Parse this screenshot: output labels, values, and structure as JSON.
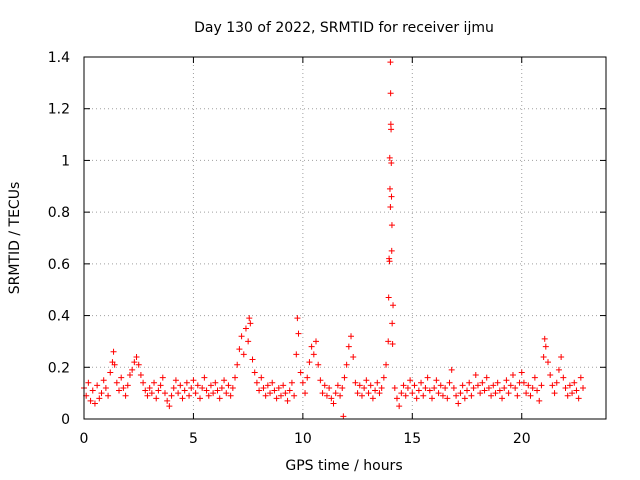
{
  "chart_data": {
    "type": "scatter",
    "title": "Day 130 of 2022, SRMTID for receiver ijmu",
    "xlabel": "GPS time / hours",
    "ylabel": "SRMTID / TECUs",
    "xlim": [
      0,
      23.85
    ],
    "ylim": [
      0,
      1.4
    ],
    "xticks": [
      0,
      5,
      10,
      15,
      20
    ],
    "xtick_labels": [
      "0",
      "5",
      "10",
      "15",
      "20"
    ],
    "yticks": [
      0,
      0.2,
      0.4,
      0.6,
      0.8,
      1,
      1.2,
      1.4
    ],
    "ytick_labels": [
      "0",
      "0.2",
      "0.4",
      "0.6",
      "0.8",
      "1",
      "1.2",
      "1.4"
    ],
    "grid": true,
    "marker": "+",
    "color": "#ff0000",
    "series": [
      {
        "name": "SRMTID",
        "points": [
          [
            0.0,
            0.12
          ],
          [
            0.1,
            0.09
          ],
          [
            0.2,
            0.14
          ],
          [
            0.3,
            0.07
          ],
          [
            0.4,
            0.11
          ],
          [
            0.5,
            0.06
          ],
          [
            0.6,
            0.13
          ],
          [
            0.7,
            0.08
          ],
          [
            0.8,
            0.1
          ],
          [
            0.9,
            0.15
          ],
          [
            1.0,
            0.12
          ],
          [
            1.1,
            0.09
          ],
          [
            1.2,
            0.18
          ],
          [
            1.3,
            0.22
          ],
          [
            1.35,
            0.26
          ],
          [
            1.4,
            0.21
          ],
          [
            1.5,
            0.14
          ],
          [
            1.6,
            0.11
          ],
          [
            1.7,
            0.16
          ],
          [
            1.8,
            0.12
          ],
          [
            1.9,
            0.09
          ],
          [
            2.0,
            0.13
          ],
          [
            2.1,
            0.17
          ],
          [
            2.2,
            0.19
          ],
          [
            2.3,
            0.22
          ],
          [
            2.4,
            0.24
          ],
          [
            2.5,
            0.21
          ],
          [
            2.6,
            0.17
          ],
          [
            2.7,
            0.14
          ],
          [
            2.8,
            0.11
          ],
          [
            2.9,
            0.09
          ],
          [
            3.0,
            0.12
          ],
          [
            3.1,
            0.1
          ],
          [
            3.2,
            0.14
          ],
          [
            3.3,
            0.08
          ],
          [
            3.4,
            0.11
          ],
          [
            3.5,
            0.13
          ],
          [
            3.6,
            0.16
          ],
          [
            3.7,
            0.1
          ],
          [
            3.8,
            0.07
          ],
          [
            3.9,
            0.05
          ],
          [
            4.0,
            0.09
          ],
          [
            4.1,
            0.12
          ],
          [
            4.2,
            0.15
          ],
          [
            4.3,
            0.1
          ],
          [
            4.4,
            0.13
          ],
          [
            4.5,
            0.08
          ],
          [
            4.6,
            0.11
          ],
          [
            4.7,
            0.14
          ],
          [
            4.8,
            0.09
          ],
          [
            4.9,
            0.12
          ],
          [
            5.0,
            0.15
          ],
          [
            5.1,
            0.1
          ],
          [
            5.2,
            0.13
          ],
          [
            5.3,
            0.08
          ],
          [
            5.4,
            0.12
          ],
          [
            5.5,
            0.16
          ],
          [
            5.6,
            0.11
          ],
          [
            5.7,
            0.09
          ],
          [
            5.8,
            0.13
          ],
          [
            5.9,
            0.1
          ],
          [
            6.0,
            0.14
          ],
          [
            6.1,
            0.11
          ],
          [
            6.2,
            0.08
          ],
          [
            6.3,
            0.12
          ],
          [
            6.4,
            0.15
          ],
          [
            6.5,
            0.1
          ],
          [
            6.6,
            0.13
          ],
          [
            6.7,
            0.09
          ],
          [
            6.8,
            0.12
          ],
          [
            6.9,
            0.16
          ],
          [
            7.0,
            0.21
          ],
          [
            7.1,
            0.27
          ],
          [
            7.2,
            0.32
          ],
          [
            7.3,
            0.25
          ],
          [
            7.4,
            0.35
          ],
          [
            7.5,
            0.3
          ],
          [
            7.55,
            0.39
          ],
          [
            7.6,
            0.37
          ],
          [
            7.7,
            0.23
          ],
          [
            7.8,
            0.18
          ],
          [
            7.9,
            0.14
          ],
          [
            8.0,
            0.11
          ],
          [
            8.1,
            0.16
          ],
          [
            8.2,
            0.12
          ],
          [
            8.3,
            0.09
          ],
          [
            8.4,
            0.13
          ],
          [
            8.5,
            0.1
          ],
          [
            8.6,
            0.14
          ],
          [
            8.7,
            0.11
          ],
          [
            8.8,
            0.08
          ],
          [
            8.9,
            0.12
          ],
          [
            9.0,
            0.09
          ],
          [
            9.1,
            0.13
          ],
          [
            9.2,
            0.1
          ],
          [
            9.3,
            0.07
          ],
          [
            9.4,
            0.11
          ],
          [
            9.5,
            0.14
          ],
          [
            9.6,
            0.09
          ],
          [
            9.7,
            0.25
          ],
          [
            9.75,
            0.39
          ],
          [
            9.8,
            0.33
          ],
          [
            9.9,
            0.18
          ],
          [
            10.0,
            0.14
          ],
          [
            10.1,
            0.1
          ],
          [
            10.2,
            0.16
          ],
          [
            10.3,
            0.22
          ],
          [
            10.4,
            0.28
          ],
          [
            10.5,
            0.25
          ],
          [
            10.6,
            0.3
          ],
          [
            10.7,
            0.21
          ],
          [
            10.8,
            0.15
          ],
          [
            10.9,
            0.1
          ],
          [
            11.0,
            0.13
          ],
          [
            11.1,
            0.09
          ],
          [
            11.2,
            0.12
          ],
          [
            11.3,
            0.08
          ],
          [
            11.4,
            0.06
          ],
          [
            11.5,
            0.1
          ],
          [
            11.6,
            0.13
          ],
          [
            11.7,
            0.09
          ],
          [
            11.8,
            0.12
          ],
          [
            11.85,
            0.01
          ],
          [
            11.9,
            0.16
          ],
          [
            12.0,
            0.21
          ],
          [
            12.1,
            0.28
          ],
          [
            12.2,
            0.32
          ],
          [
            12.3,
            0.24
          ],
          [
            12.4,
            0.14
          ],
          [
            12.5,
            0.1
          ],
          [
            12.6,
            0.13
          ],
          [
            12.7,
            0.09
          ],
          [
            12.8,
            0.12
          ],
          [
            12.9,
            0.15
          ],
          [
            13.0,
            0.1
          ],
          [
            13.1,
            0.13
          ],
          [
            13.2,
            0.08
          ],
          [
            13.3,
            0.11
          ],
          [
            13.4,
            0.14
          ],
          [
            13.5,
            0.1
          ],
          [
            13.6,
            0.12
          ],
          [
            13.7,
            0.16
          ],
          [
            13.8,
            0.21
          ],
          [
            13.9,
            0.3
          ],
          [
            13.92,
            0.47
          ],
          [
            13.94,
            0.62
          ],
          [
            13.96,
            0.61
          ],
          [
            13.98,
            0.89
          ],
          [
            14.0,
            0.82
          ],
          [
            13.97,
            1.01
          ],
          [
            14.02,
            1.14
          ],
          [
            14.03,
            1.12
          ],
          [
            14.01,
            1.26
          ],
          [
            14.0,
            1.38
          ],
          [
            14.04,
            0.99
          ],
          [
            14.05,
            0.86
          ],
          [
            14.07,
            0.75
          ],
          [
            14.06,
            0.65
          ],
          [
            14.08,
            0.37
          ],
          [
            14.1,
            0.29
          ],
          [
            14.12,
            0.44
          ],
          [
            14.2,
            0.12
          ],
          [
            14.3,
            0.08
          ],
          [
            14.4,
            0.05
          ],
          [
            14.5,
            0.1
          ],
          [
            14.6,
            0.13
          ],
          [
            14.7,
            0.09
          ],
          [
            14.8,
            0.12
          ],
          [
            14.9,
            0.15
          ],
          [
            15.0,
            0.1
          ],
          [
            15.1,
            0.13
          ],
          [
            15.2,
            0.08
          ],
          [
            15.3,
            0.11
          ],
          [
            15.4,
            0.14
          ],
          [
            15.5,
            0.09
          ],
          [
            15.6,
            0.12
          ],
          [
            15.7,
            0.16
          ],
          [
            15.8,
            0.11
          ],
          [
            15.9,
            0.08
          ],
          [
            16.0,
            0.12
          ],
          [
            16.1,
            0.15
          ],
          [
            16.2,
            0.1
          ],
          [
            16.3,
            0.13
          ],
          [
            16.4,
            0.09
          ],
          [
            16.5,
            0.12
          ],
          [
            16.6,
            0.08
          ],
          [
            16.7,
            0.14
          ],
          [
            16.8,
            0.19
          ],
          [
            16.9,
            0.12
          ],
          [
            17.0,
            0.09
          ],
          [
            17.1,
            0.06
          ],
          [
            17.2,
            0.1
          ],
          [
            17.3,
            0.13
          ],
          [
            17.4,
            0.08
          ],
          [
            17.5,
            0.11
          ],
          [
            17.6,
            0.14
          ],
          [
            17.7,
            0.09
          ],
          [
            17.8,
            0.12
          ],
          [
            17.9,
            0.17
          ],
          [
            18.0,
            0.13
          ],
          [
            18.1,
            0.1
          ],
          [
            18.2,
            0.14
          ],
          [
            18.3,
            0.11
          ],
          [
            18.4,
            0.16
          ],
          [
            18.5,
            0.12
          ],
          [
            18.6,
            0.09
          ],
          [
            18.7,
            0.13
          ],
          [
            18.8,
            0.1
          ],
          [
            18.9,
            0.14
          ],
          [
            19.0,
            0.11
          ],
          [
            19.1,
            0.08
          ],
          [
            19.2,
            0.12
          ],
          [
            19.3,
            0.15
          ],
          [
            19.4,
            0.1
          ],
          [
            19.5,
            0.13
          ],
          [
            19.6,
            0.17
          ],
          [
            19.7,
            0.12
          ],
          [
            19.8,
            0.09
          ],
          [
            19.9,
            0.14
          ],
          [
            20.0,
            0.18
          ],
          [
            20.1,
            0.14
          ],
          [
            20.2,
            0.1
          ],
          [
            20.3,
            0.13
          ],
          [
            20.4,
            0.09
          ],
          [
            20.5,
            0.12
          ],
          [
            20.6,
            0.16
          ],
          [
            20.7,
            0.11
          ],
          [
            20.8,
            0.07
          ],
          [
            20.9,
            0.13
          ],
          [
            21.0,
            0.24
          ],
          [
            21.05,
            0.31
          ],
          [
            21.1,
            0.28
          ],
          [
            21.2,
            0.22
          ],
          [
            21.3,
            0.17
          ],
          [
            21.4,
            0.13
          ],
          [
            21.5,
            0.1
          ],
          [
            21.6,
            0.14
          ],
          [
            21.7,
            0.19
          ],
          [
            21.8,
            0.24
          ],
          [
            21.9,
            0.16
          ],
          [
            22.0,
            0.12
          ],
          [
            22.1,
            0.09
          ],
          [
            22.2,
            0.13
          ],
          [
            22.3,
            0.1
          ],
          [
            22.4,
            0.14
          ],
          [
            22.5,
            0.11
          ],
          [
            22.6,
            0.08
          ],
          [
            22.7,
            0.16
          ],
          [
            22.8,
            0.12
          ]
        ]
      }
    ]
  }
}
